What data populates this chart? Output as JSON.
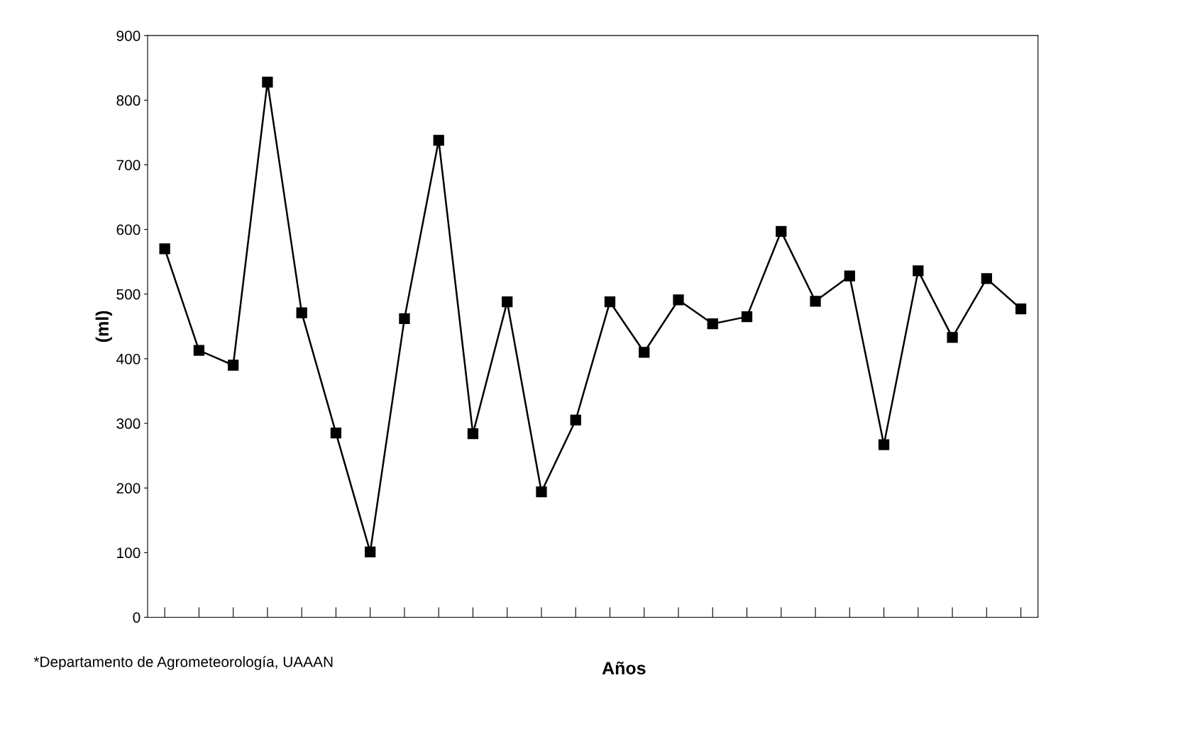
{
  "chart_data": {
    "type": "line",
    "xlabel": "Años",
    "ylabel": "(ml)",
    "categories": [
      null,
      null,
      null,
      null,
      null,
      null,
      null,
      null,
      null,
      null,
      null,
      null,
      null,
      null,
      null,
      null,
      null,
      null,
      null,
      null,
      null,
      null,
      null,
      null,
      null,
      null
    ],
    "series": [
      {
        "color": "#000000",
        "values": [
          570,
          413,
          390,
          828,
          471,
          285,
          101,
          462,
          738,
          284,
          488,
          194,
          305,
          488,
          410,
          491,
          454,
          465,
          597,
          489,
          528,
          267,
          536,
          433,
          524,
          477
        ]
      }
    ],
    "ylim": [
      0,
      900
    ],
    "yticks": [
      0,
      100,
      200,
      300,
      400,
      500,
      600,
      700,
      800,
      900
    ],
    "marker": "square",
    "line_style": "solid",
    "grid": false,
    "legend": false,
    "annotations": [
      "*Departamento de Agrometeorología, UAAAN"
    ]
  }
}
